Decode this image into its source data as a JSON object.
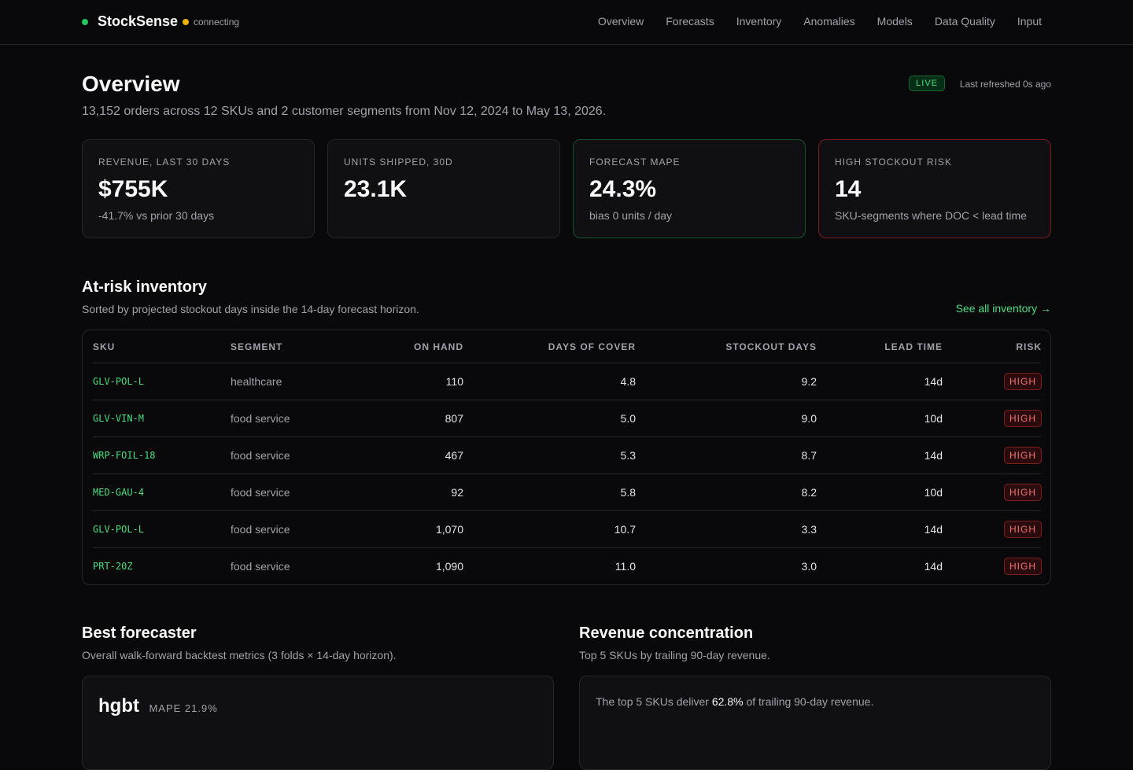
{
  "header": {
    "brand": "StockSense",
    "status": "connecting",
    "nav": [
      "Overview",
      "Forecasts",
      "Inventory",
      "Anomalies",
      "Models",
      "Data Quality",
      "Input"
    ]
  },
  "page": {
    "title": "Overview",
    "subtitle": "13,152 orders across 12 SKUs and 2 customer segments from Nov 12, 2024 to May 13, 2026.",
    "live": "LIVE",
    "refreshed": "Last refreshed 0s ago"
  },
  "kpis": [
    {
      "label": "REVENUE, LAST 30 DAYS",
      "value": "$755K",
      "note": "-41.7% vs prior 30 days"
    },
    {
      "label": "UNITS SHIPPED, 30D",
      "value": "23.1K"
    },
    {
      "label": "FORECAST MAPE",
      "value": "24.3%",
      "note": "bias 0 units / day"
    },
    {
      "label": "HIGH STOCKOUT RISK",
      "value": "14",
      "note": "SKU-segments where DOC < lead time"
    }
  ],
  "at_risk": {
    "title": "At-risk inventory",
    "subtitle": "Sorted by projected stockout days inside the 14-day forecast horizon.",
    "link": "See all inventory →",
    "columns": [
      "SKU",
      "SEGMENT",
      "ON HAND",
      "DAYS OF COVER",
      "STOCKOUT DAYS",
      "LEAD TIME",
      "RISK"
    ],
    "rows": [
      [
        "GLV-POL-L",
        "healthcare",
        "110",
        "4.8",
        "9.2",
        "14d",
        "HIGH"
      ],
      [
        "GLV-VIN-M",
        "food service",
        "807",
        "5.0",
        "9.0",
        "10d",
        "HIGH"
      ],
      [
        "WRP-FOIL-18",
        "food service",
        "467",
        "5.3",
        "8.7",
        "14d",
        "HIGH"
      ],
      [
        "MED-GAU-4",
        "food service",
        "92",
        "5.8",
        "8.2",
        "10d",
        "HIGH"
      ],
      [
        "GLV-POL-L",
        "food service",
        "1,070",
        "10.7",
        "3.3",
        "14d",
        "HIGH"
      ],
      [
        "PRT-20Z",
        "food service",
        "1,090",
        "11.0",
        "3.0",
        "14d",
        "HIGH"
      ]
    ]
  },
  "best_forecaster": {
    "title": "Best forecaster",
    "subtitle": "Overall walk-forward backtest metrics (3 folds × 14-day horizon).",
    "model": "hgbt",
    "metric": "MAPE 21.9%"
  },
  "revenue_concentration": {
    "title": "Revenue concentration",
    "subtitle": "Top 5 SKUs by trailing 90-day revenue.",
    "text_before": "The top 5 SKUs deliver",
    "highlight": "62.8%",
    "text_after": "of trailing 90-day revenue."
  }
}
